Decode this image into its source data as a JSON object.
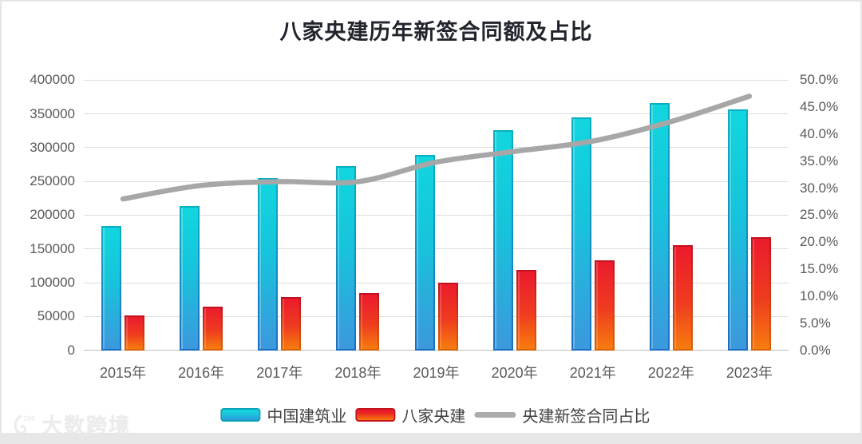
{
  "title": "八家央建历年新签合同额及占比",
  "legend": {
    "items": [
      {
        "label": "中国建筑业",
        "type": "bar",
        "color_top": "#15d3dc",
        "color_bottom": "#2f9adc"
      },
      {
        "label": "八家央建",
        "type": "bar",
        "color_top": "#e91c29",
        "color_bottom": "#f8790a"
      },
      {
        "label": "央建新签合同占比",
        "type": "line",
        "color": "#a7a7a7"
      }
    ]
  },
  "axes": {
    "left_ticks": [
      "400000",
      "350000",
      "300000",
      "250000",
      "200000",
      "150000",
      "100000",
      "50000",
      "0"
    ],
    "right_ticks": [
      "50.0%",
      "45.0%",
      "40.0%",
      "35.0%",
      "30.0%",
      "25.0%",
      "20.0%",
      "15.0%",
      "10.0%",
      "5.0%",
      "0.0%"
    ],
    "x_labels": [
      "2015年",
      "2016年",
      "2017年",
      "2018年",
      "2019年",
      "2020年",
      "2021年",
      "2022年",
      "2023年"
    ]
  },
  "watermark": {
    "logo_text": "100",
    "name": "大数跨境"
  },
  "chart_data": {
    "type": "bar",
    "subtype": "grouped-bars-with-secondary-axis-line",
    "title": "八家央建历年新签合同额及占比",
    "categories": [
      "2015年",
      "2016年",
      "2017年",
      "2018年",
      "2019年",
      "2020年",
      "2021年",
      "2022年",
      "2023年"
    ],
    "series": [
      {
        "name": "中国建筑业",
        "type": "bar",
        "axis": "left",
        "values": [
          184500,
          213500,
          254500,
          272700,
          289200,
          325200,
          344600,
          366500,
          356000
        ]
      },
      {
        "name": "八家央建",
        "type": "bar",
        "axis": "left",
        "values": [
          51500,
          64800,
          79400,
          85000,
          99800,
          119500,
          133300,
          155500,
          167500
        ]
      },
      {
        "name": "央建新签合同占比",
        "type": "line",
        "axis": "right",
        "unit": "%",
        "values": [
          28.0,
          30.5,
          31.2,
          31.2,
          34.8,
          36.8,
          38.7,
          42.3,
          47.0
        ]
      }
    ],
    "left_axis": {
      "min": 0,
      "max": 400000,
      "step": 50000
    },
    "right_axis": {
      "min": 0,
      "max": 50,
      "step": 5,
      "format": "percent"
    },
    "grid": true,
    "legend_position": "bottom",
    "line_smoothed": true,
    "colors": {
      "bar1_top": "#11d6de",
      "bar1_bottom": "#3c98dd",
      "bar2_top": "#ec1b2d",
      "bar2_bottom": "#f87c0e",
      "line": "#a7a7a7",
      "gridline": "#dedede",
      "tick_text": "#595959",
      "title_text": "#21242c"
    }
  }
}
